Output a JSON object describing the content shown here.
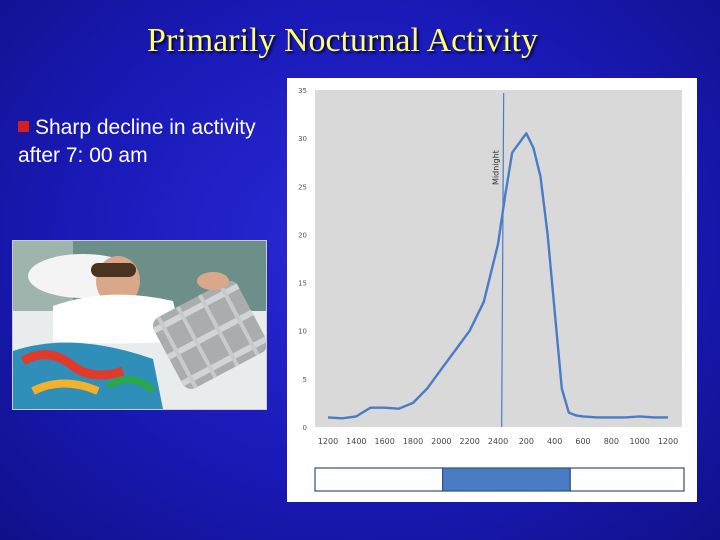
{
  "slide": {
    "title": "Primarily Nocturnal Activity",
    "bullet": "Sharp decline in activity after 7: 00 am"
  },
  "colors": {
    "background": "#1a1ab8",
    "title": "#ffff66",
    "bullet_marker": "#d62020",
    "line": "#4a7cc4",
    "plot_area": "#d9d9d9"
  },
  "chart_data": {
    "type": "line",
    "title": "",
    "xlabel": "",
    "ylabel": "",
    "ylim": [
      0,
      35
    ],
    "yticks": [
      "0",
      "5",
      "10",
      "15",
      "20",
      "25",
      "30",
      "35"
    ],
    "xticks": [
      "1200",
      "1400",
      "1600",
      "1800",
      "2000",
      "2200",
      "2400",
      "200",
      "400",
      "600",
      "800",
      "1000",
      "1200"
    ],
    "grid": false,
    "legend": "none",
    "series": [
      {
        "x": [
          0,
          0.5,
          1,
          1.5,
          2,
          2.5,
          3,
          3.5,
          4,
          4.5,
          5,
          5.5,
          6,
          6.25,
          6.5,
          7,
          7.25,
          7.5,
          7.75,
          8,
          8.25,
          8.5,
          8.75,
          9,
          9.5,
          10,
          10.5,
          11,
          11.5,
          12
        ],
        "y": [
          1.0,
          0.9,
          1.1,
          2.0,
          2.0,
          1.9,
          2.5,
          4.0,
          6.0,
          8.0,
          10.0,
          13.0,
          19.0,
          24.0,
          28.5,
          30.5,
          29.0,
          26.0,
          20.0,
          12.0,
          4.0,
          1.5,
          1.2,
          1.1,
          1.0,
          1.0,
          1.0,
          1.1,
          1.0,
          1.0
        ]
      }
    ],
    "annotations": [
      {
        "text": "Midnight",
        "x": 6.2
      }
    ],
    "light_bar": [
      {
        "from": 0,
        "to": 4.15,
        "shade": "light"
      },
      {
        "from": 4.15,
        "to": 8.3,
        "shade": "dark"
      },
      {
        "from": 8.3,
        "to": 12,
        "shade": "light"
      }
    ]
  }
}
